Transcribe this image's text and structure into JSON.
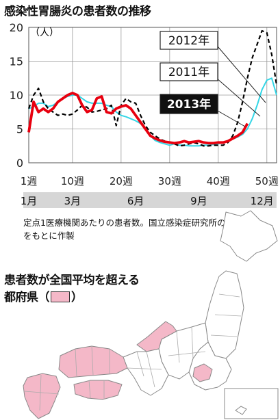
{
  "title": "感染性胃腸炎の患者数の推移",
  "unit_label": "（人）",
  "source_note": "定点1医療機関あたりの患者数。国立感染症研究所の資料をもとに作製",
  "map": {
    "title_line1": "患者数が全国平均を超える",
    "title_line2_prefix": "都府県（",
    "title_line2_suffix": "）",
    "highlight_color": "#f4b8c8",
    "base_color": "#ffffff"
  },
  "chart_data": {
    "type": "line",
    "title": "感染性胃腸炎の患者数の推移",
    "ylabel": "（人）",
    "ylim": [
      0,
      20
    ],
    "xlim": [
      1,
      52
    ],
    "y_ticks": [
      0,
      5,
      10,
      15,
      20
    ],
    "x_ticks": [
      {
        "value": 1,
        "label": "1週"
      },
      {
        "value": 10,
        "label": "10週"
      },
      {
        "value": 20,
        "label": "20週"
      },
      {
        "value": 30,
        "label": "30週"
      },
      {
        "value": 40,
        "label": "40週"
      },
      {
        "value": 50,
        "label": "50週"
      }
    ],
    "month_ticks": [
      {
        "value": 1,
        "label": "1月"
      },
      {
        "value": 10,
        "label": "3月"
      },
      {
        "value": 23,
        "label": "6月"
      },
      {
        "value": 36,
        "label": "9月"
      },
      {
        "value": 49,
        "label": "12月"
      }
    ],
    "grid": true,
    "series": [
      {
        "name": "2012年",
        "color": "#000000",
        "style": "dashed",
        "x": [
          1,
          2,
          3,
          4,
          5,
          6,
          7,
          8,
          9,
          10,
          11,
          12,
          13,
          14,
          15,
          16,
          17,
          18,
          19,
          20,
          21,
          22,
          23,
          24,
          25,
          26,
          27,
          28,
          29,
          30,
          31,
          32,
          33,
          34,
          35,
          36,
          37,
          38,
          39,
          40,
          41,
          42,
          43,
          44,
          45,
          46,
          47,
          48,
          49,
          50,
          51,
          52
        ],
        "y": [
          8.0,
          10.0,
          11.0,
          9.0,
          8.0,
          7.5,
          7.0,
          7.2,
          7.0,
          7.2,
          7.8,
          8.5,
          8.2,
          7.5,
          7.6,
          7.8,
          8.0,
          8.5,
          5.5,
          8.5,
          9.5,
          9.0,
          8.8,
          7.0,
          5.5,
          4.5,
          4.0,
          3.5,
          3.2,
          3.0,
          2.8,
          2.5,
          2.6,
          2.8,
          3.0,
          2.8,
          2.5,
          2.5,
          2.6,
          2.6,
          2.6,
          3.0,
          4.0,
          6.0,
          9.0,
          12.5,
          15.5,
          17.5,
          19.5,
          19.2,
          16.0,
          11.5
        ]
      },
      {
        "name": "2011年",
        "color": "#33d6e6",
        "style": "solid",
        "x": [
          1,
          2,
          3,
          4,
          5,
          6,
          7,
          8,
          9,
          10,
          11,
          12,
          13,
          14,
          15,
          16,
          17,
          18,
          19,
          20,
          21,
          22,
          23,
          24,
          25,
          26,
          27,
          28,
          29,
          30,
          31,
          32,
          33,
          34,
          35,
          36,
          37,
          38,
          39,
          40,
          41,
          42,
          43,
          44,
          45,
          46,
          47,
          48,
          49,
          50,
          51,
          52
        ],
        "y": [
          8.0,
          8.3,
          8.8,
          8.8,
          8.3,
          8.5,
          9.0,
          9.5,
          9.8,
          10.0,
          10.0,
          9.5,
          9.0,
          8.8,
          8.8,
          8.8,
          8.5,
          8.3,
          7.5,
          7.0,
          6.8,
          6.5,
          6.2,
          5.8,
          5.0,
          4.0,
          3.3,
          3.0,
          2.8,
          2.6,
          2.8,
          2.6,
          2.6,
          2.5,
          2.5,
          2.5,
          2.6,
          2.6,
          2.7,
          2.8,
          3.0,
          3.2,
          3.5,
          3.8,
          4.2,
          5.0,
          6.5,
          8.5,
          10.8,
          12.2,
          12.5,
          10.0
        ]
      },
      {
        "name": "2013年",
        "color": "#e8000f",
        "style": "solid",
        "x": [
          1,
          2,
          3,
          4,
          5,
          6,
          7,
          8,
          9,
          10,
          11,
          12,
          13,
          14,
          15,
          16,
          17,
          18,
          19,
          20,
          21,
          22,
          23,
          24,
          25,
          26,
          27,
          28,
          29,
          30,
          31,
          32,
          33,
          34,
          35,
          36,
          37,
          38,
          39,
          40,
          41,
          42,
          43,
          44,
          45,
          46
        ],
        "y": [
          4.5,
          9.0,
          7.5,
          8.0,
          7.5,
          8.0,
          9.0,
          9.5,
          10.0,
          10.3,
          10.0,
          8.5,
          7.5,
          7.8,
          9.5,
          9.8,
          7.5,
          7.3,
          8.0,
          8.3,
          8.5,
          8.0,
          7.0,
          6.0,
          5.0,
          4.0,
          3.6,
          3.3,
          3.1,
          3.0,
          2.9,
          3.0,
          3.2,
          3.0,
          3.1,
          3.2,
          3.0,
          2.9,
          2.9,
          3.0,
          3.0,
          3.2,
          3.6,
          4.0,
          4.5,
          5.8
        ]
      }
    ],
    "annotations": [
      {
        "series": "2012年",
        "text": "2012年"
      },
      {
        "series": "2011年",
        "text": "2011年"
      },
      {
        "series": "2013年",
        "text": "2013年"
      }
    ]
  }
}
